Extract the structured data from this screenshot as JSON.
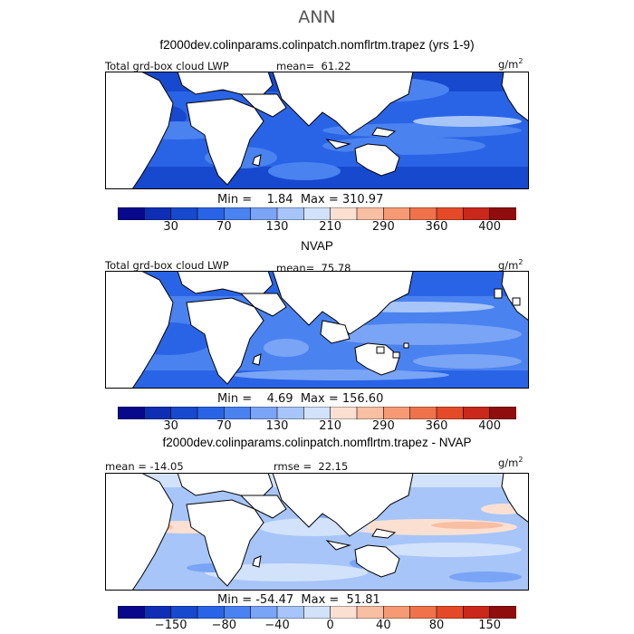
{
  "figure": {
    "title": "ANN"
  },
  "panels": [
    {
      "title": "f2000dev.colinparams.colinpatch.nomflrtm.trapez (yrs 1-9)",
      "left_label": "Total grd-box cloud LWP",
      "mean_label": "mean=  61.22",
      "units": "g/m",
      "units_sup": "2",
      "minmax": "Min =    1.84  Max = 310.97",
      "colorbar_labels": [
        "30",
        "70",
        "130",
        "210",
        "290",
        "360",
        "400"
      ],
      "colorbar_colors": [
        "#08088c",
        "#0e2fb4",
        "#1749cf",
        "#2a64e6",
        "#4a82f0",
        "#7aa4f5",
        "#a7c5f8",
        "#d2e2fb",
        "#fbe0d2",
        "#f9bfa3",
        "#f59a75",
        "#ef724b",
        "#e54a28",
        "#c9281a",
        "#8f0d0d"
      ]
    },
    {
      "title": "NVAP",
      "left_label": "Total grd-box cloud LWP",
      "mean_label": "mean=  75.78",
      "units": "g/m",
      "units_sup": "2",
      "minmax": "Min =    4.69  Max = 156.60",
      "colorbar_labels": [
        "30",
        "70",
        "130",
        "210",
        "290",
        "360",
        "400"
      ],
      "colorbar_colors": [
        "#08088c",
        "#0e2fb4",
        "#1749cf",
        "#2a64e6",
        "#4a82f0",
        "#7aa4f5",
        "#a7c5f8",
        "#d2e2fb",
        "#fbe0d2",
        "#f9bfa3",
        "#f59a75",
        "#ef724b",
        "#e54a28",
        "#c9281a",
        "#8f0d0d"
      ]
    },
    {
      "title": "f2000dev.colinparams.colinpatch.nomflrtm.trapez - NVAP",
      "left_label": "mean = -14.05",
      "mean_label": "rmse =  22.15",
      "units": "g/m",
      "units_sup": "2",
      "minmax": "Min = -54.47  Max =  51.81",
      "colorbar_labels": [
        "−150",
        "−80",
        "−40",
        "0",
        "40",
        "80",
        "150"
      ],
      "colorbar_colors": [
        "#08088c",
        "#0e2fb4",
        "#1749cf",
        "#2a64e6",
        "#4a82f0",
        "#7aa4f5",
        "#a7c5f8",
        "#d2e2fb",
        "#fbe0d2",
        "#f9bfa3",
        "#f59a75",
        "#ef724b",
        "#e54a28",
        "#c9281a",
        "#8f0d0d"
      ]
    }
  ]
}
